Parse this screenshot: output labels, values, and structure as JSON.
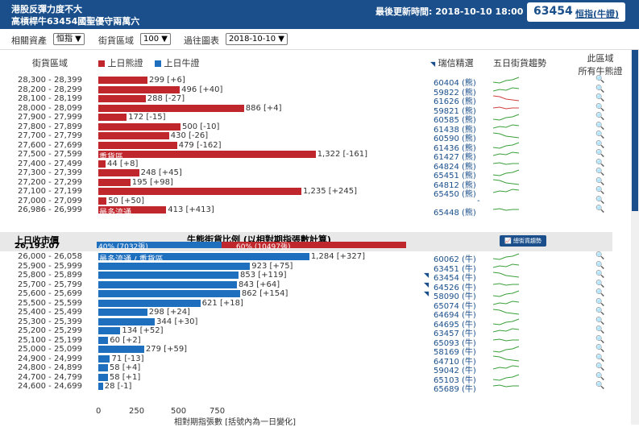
{
  "header": {
    "title_line1": "港股反彈力度不大",
    "title_line2": "高槓桿牛63454國聖優守兩萬六",
    "updated_label": "最後更新時間:",
    "updated_value": "2018-10-10 18:00",
    "quote_number": "63454",
    "quote_label": "恒指(牛證)"
  },
  "filters": {
    "asset_label": "相關資產",
    "asset_value": "恒指 ▼",
    "range_label": "街貨區域",
    "range_value": "100 ▼",
    "past_label": "過往圖表",
    "past_value": "2018-10-10 ▼"
  },
  "columns": {
    "range": "街貨區域",
    "bear_legend": "上日熊證",
    "bull_legend": "上日牛證",
    "code": "瑞信精選",
    "trend": "五日街貨趨勢",
    "all_line1": "此區域",
    "all_line2": "所有牛熊證"
  },
  "bear_rows": [
    {
      "range": "28,300 - 28,399",
      "value": 299,
      "label": "299 [+6]",
      "code": "60404 (熊)",
      "arrow": false
    },
    {
      "range": "28,200 - 28,299",
      "value": 496,
      "label": "496 [+40]",
      "code": "59822 (熊)",
      "arrow": false
    },
    {
      "range": "28,100 - 28,199",
      "value": 288,
      "label": "288 [-27]",
      "code": "61626 (熊)",
      "arrow": false
    },
    {
      "range": "28,000 - 28,099",
      "value": 886,
      "label": "886 [+4]",
      "code": "59821 (熊)",
      "arrow": false
    },
    {
      "range": "27,900 - 27,999",
      "value": 172,
      "label": "172 [-15]",
      "code": "60585 (熊)",
      "arrow": false
    },
    {
      "range": "27,800 - 27,899",
      "value": 500,
      "label": "500 [-10]",
      "code": "61438 (熊)",
      "arrow": false
    },
    {
      "range": "27,700 - 27,799",
      "value": 430,
      "label": "430 [-26]",
      "code": "60590 (熊)",
      "arrow": false
    },
    {
      "range": "27,600 - 27,699",
      "value": 479,
      "label": "479 [-162]",
      "code": "61436 (熊)",
      "arrow": false
    },
    {
      "range": "27,500 - 27,599",
      "value": 1322,
      "label": "1,322 [-161]",
      "code": "61427 (熊)",
      "arrow": false,
      "bar_text": "重貨區"
    },
    {
      "range": "27,400 - 27,499",
      "value": 44,
      "label": "44 [+8]",
      "code": "64824 (熊)",
      "arrow": false
    },
    {
      "range": "27,300 - 27,399",
      "value": 248,
      "label": "248 [+45]",
      "code": "65451 (熊)",
      "arrow": false
    },
    {
      "range": "27,200 - 27,299",
      "value": 195,
      "label": "195 [+98]",
      "code": "64812 (熊)",
      "arrow": false
    },
    {
      "range": "27,100 - 27,199",
      "value": 1235,
      "label": "1,235 [+245]",
      "code": "65450 (熊)",
      "arrow": false
    },
    {
      "range": "27,000 - 27,099",
      "value": 50,
      "label": "50 [+50]",
      "code": "-",
      "arrow": false
    },
    {
      "range": "26,986 - 26,999",
      "value": 413,
      "label": "413 [+413]",
      "code": "65448 (熊)",
      "arrow": false,
      "bar_text": "最多流通"
    }
  ],
  "middle": {
    "close_label": "上日收市價",
    "close_value": "26,193.07",
    "ratio_title": "牛熊街貨比例 (以相對期指張數計算)",
    "bull_pct": 40,
    "bull_text": "40% (7032張)",
    "bear_text": "60% (10497張)",
    "trend_button": "總街貨趨勢"
  },
  "bull_rows": [
    {
      "range": "26,000 - 26,058",
      "value": 1284,
      "label": "1,284 [+327]",
      "code": "60062 (牛)",
      "arrow": false,
      "bar_text": "最多流通 / 重貨區"
    },
    {
      "range": "25,900 - 25,999",
      "value": 923,
      "label": "923 [+75]",
      "code": "63451 (牛)",
      "arrow": false
    },
    {
      "range": "25,800 - 25,899",
      "value": 853,
      "label": "853 [+119]",
      "code": "63454 (牛)",
      "arrow": true
    },
    {
      "range": "25,700 - 25,799",
      "value": 843,
      "label": "843 [+64]",
      "code": "64526 (牛)",
      "arrow": true
    },
    {
      "range": "25,600 - 25,699",
      "value": 862,
      "label": "862 [+154]",
      "code": "58090 (牛)",
      "arrow": true
    },
    {
      "range": "25,500 - 25,599",
      "value": 621,
      "label": "621 [+18]",
      "code": "65074 (牛)",
      "arrow": false
    },
    {
      "range": "25,400 - 25,499",
      "value": 298,
      "label": "298 [+24]",
      "code": "64694 (牛)",
      "arrow": false
    },
    {
      "range": "25,300 - 25,399",
      "value": 344,
      "label": "344 [+30]",
      "code": "64695 (牛)",
      "arrow": false
    },
    {
      "range": "25,200 - 25,299",
      "value": 134,
      "label": "134 [+52]",
      "code": "63457 (牛)",
      "arrow": false
    },
    {
      "range": "25,100 - 25,199",
      "value": 60,
      "label": "60 [+2]",
      "code": "65093 (牛)",
      "arrow": false
    },
    {
      "range": "25,000 - 25,099",
      "value": 279,
      "label": "279 [+59]",
      "code": "58169 (牛)",
      "arrow": false
    },
    {
      "range": "24,900 - 24,999",
      "value": 71,
      "label": "71 [-13]",
      "code": "64710 (牛)",
      "arrow": false
    },
    {
      "range": "24,800 - 24,899",
      "value": 58,
      "label": "58 [+4]",
      "code": "59042 (牛)",
      "arrow": false
    },
    {
      "range": "24,700 - 24,799",
      "value": 58,
      "label": "58 [+1]",
      "code": "65103 (牛)",
      "arrow": false
    },
    {
      "range": "24,600 - 24,699",
      "value": 28,
      "label": "28 [-1]",
      "code": "65689 (牛)",
      "arrow": false
    }
  ],
  "axis": {
    "ticks": [
      "0",
      "250",
      "500",
      "750"
    ],
    "title": "相對期指張數 [括號內為一日變化]"
  },
  "colors": {
    "bear": "#c0272d",
    "bull": "#1f6fbf",
    "header": "#1a4f8b"
  }
}
